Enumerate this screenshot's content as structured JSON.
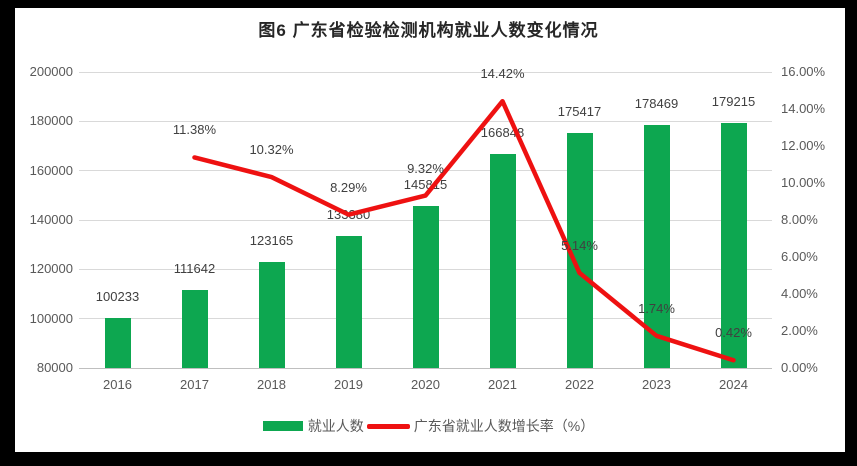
{
  "title": "图6  广东省检验检测机构就业人数变化情况",
  "colors": {
    "bar_green": "#0DA750",
    "line_red": "#EE1111",
    "gridline": "#D9D9D9",
    "axis_line": "#BFBFBF",
    "tick_text": "#595959",
    "data_label_text": "#404040",
    "title_text": "#262626",
    "frame": "#000000"
  },
  "legend": {
    "items": [
      {
        "label": "就业人数",
        "swatch": "bar",
        "color": "#0DA750"
      },
      {
        "label": "广东省就业人数增长率（%）",
        "swatch": "line",
        "color": "#EE1111"
      }
    ]
  },
  "chart_data": {
    "type": "bar",
    "subtype": "bar-line-combo-dual-axis",
    "title": "图6  广东省检验检测机构就业人数变化情况",
    "categories": [
      "2016",
      "2017",
      "2018",
      "2019",
      "2020",
      "2021",
      "2022",
      "2023",
      "2024"
    ],
    "series": [
      {
        "name": "就业人数",
        "type": "bar",
        "axis": "left",
        "color": "#0DA750",
        "values": [
          100233,
          111642,
          123165,
          133380,
          145815,
          166848,
          175417,
          178469,
          179215
        ],
        "labels": [
          "100233",
          "111642",
          "123165",
          "133380",
          "145815",
          "166848",
          "175417",
          "178469",
          "179215"
        ]
      },
      {
        "name": "广东省就业人数增长率（%）",
        "type": "line",
        "axis": "right",
        "color": "#EE1111",
        "values": [
          null,
          11.38,
          10.32,
          8.29,
          9.32,
          14.42,
          5.14,
          1.74,
          0.42
        ],
        "labels": [
          "",
          "11.38%",
          "10.32%",
          "8.29%",
          "9.32%",
          "14.42%",
          "5.14%",
          "1.74%",
          "0.42%"
        ]
      }
    ],
    "left_axis": {
      "min": 80000,
      "max": 200000,
      "step": 20000,
      "labels": [
        "80000",
        "100000",
        "120000",
        "140000",
        "160000",
        "180000",
        "200000"
      ]
    },
    "right_axis": {
      "min": 0,
      "max": 16,
      "step": 2,
      "labels": [
        "0.00%",
        "2.00%",
        "4.00%",
        "6.00%",
        "8.00%",
        "10.00%",
        "12.00%",
        "14.00%",
        "16.00%"
      ]
    },
    "grid": true,
    "legend_position": "bottom"
  }
}
